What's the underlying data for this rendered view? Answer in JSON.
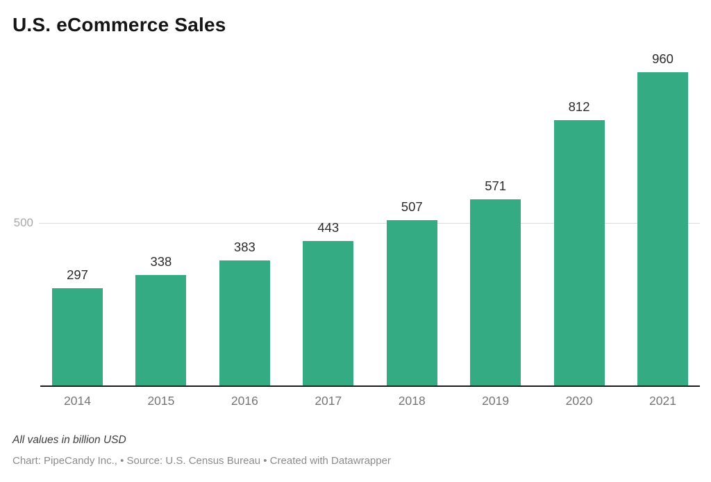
{
  "chart_data": {
    "type": "bar",
    "title": "U.S. eCommerce Sales",
    "categories": [
      "2014",
      "2015",
      "2016",
      "2017",
      "2018",
      "2019",
      "2020",
      "2021"
    ],
    "values": [
      297,
      338,
      383,
      443,
      507,
      571,
      812,
      960
    ],
    "xlabel": "",
    "ylabel": "",
    "ylim": [
      0,
      1000
    ],
    "ytick_labels": [
      "500"
    ],
    "gridlines": [
      500
    ],
    "grid": "horizontal-single",
    "legend_position": "none",
    "bar_color": "#35ab84",
    "value_label_color": "#2b2b2b",
    "axis_label_color": "#757575",
    "note": "All values in billion USD",
    "source": "Chart: PipeCandy Inc., • Source: U.S. Census Bureau • Created with Datawrapper"
  },
  "axis": {
    "y_tick_500": "500"
  }
}
